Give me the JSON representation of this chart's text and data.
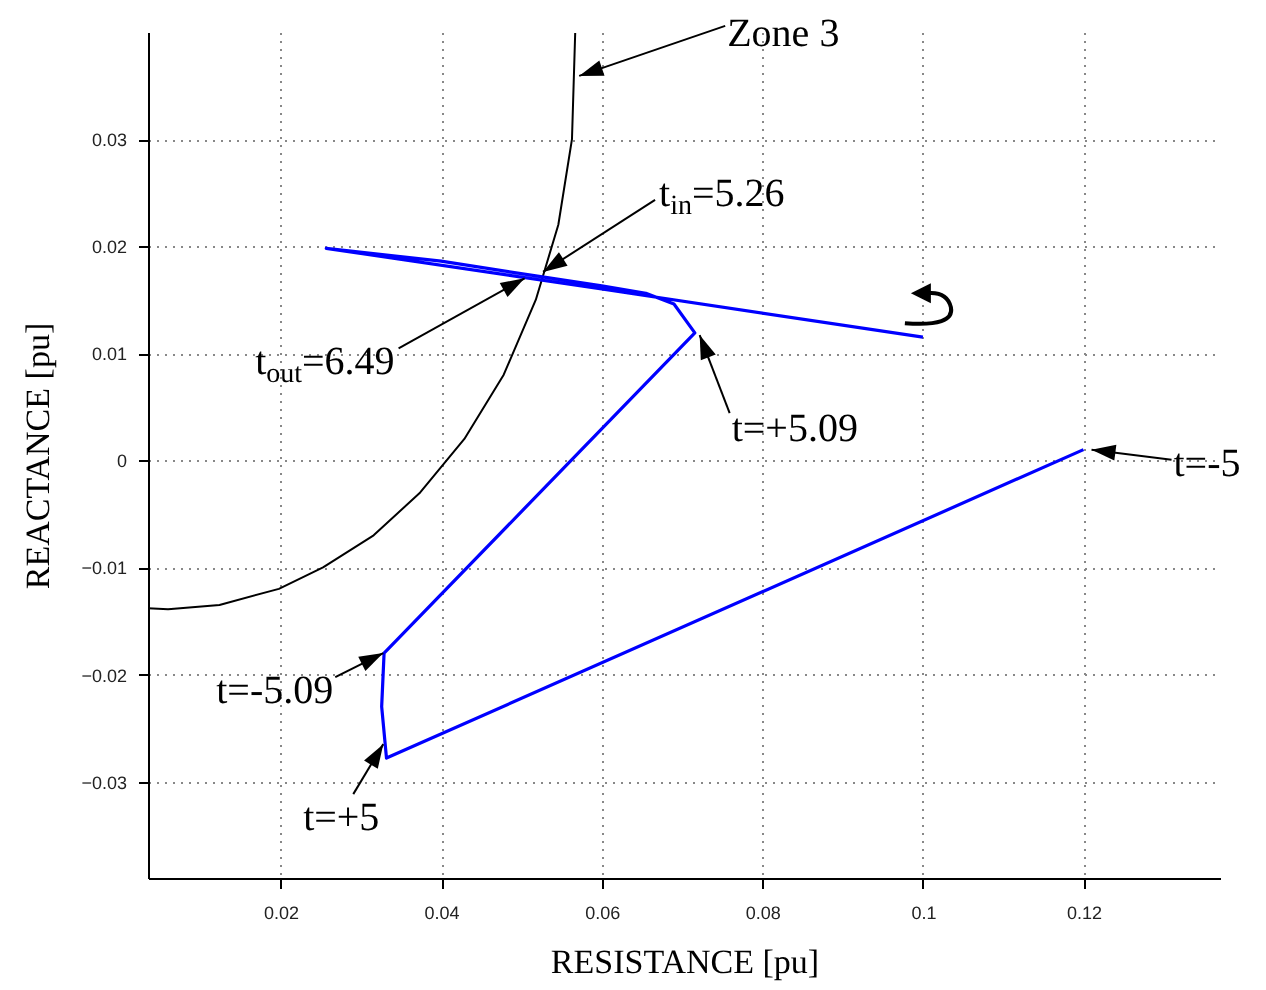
{
  "chart_data": {
    "type": "line",
    "xlabel": "RESISTANCE [pu]",
    "ylabel": "REACTANCE [pu]",
    "xlim": [
      0.0035,
      0.137
    ],
    "ylim": [
      -0.039,
      0.04
    ],
    "xticks": [
      0.02,
      0.04,
      0.06,
      0.08,
      0.1,
      0.12
    ],
    "yticks": [
      -0.03,
      -0.02,
      -0.01,
      0,
      0.01,
      0.02,
      0.03
    ],
    "grid": true,
    "series": [
      {
        "color": "#000000",
        "x": [
          0.0035,
          0.006,
          0.0124,
          0.0198,
          0.0253,
          0.0316,
          0.0374,
          0.0429,
          0.0478,
          0.0518,
          0.0546,
          0.0563,
          0.0567
        ],
        "values": [
          -0.0138,
          -0.0139,
          -0.0135,
          -0.012,
          -0.01,
          -0.007,
          -0.003,
          0.002,
          0.008,
          0.015,
          0.022,
          0.03,
          0.0399
        ]
      },
      {
        "color": "#0000ff",
        "x": [
          0.12,
          0.0332,
          0.0326,
          0.0329,
          0.0716,
          0.069,
          0.0655,
          0.06,
          0.052,
          0.04,
          0.0257,
          0.06,
          0.1
        ],
        "values": [
          0.001,
          -0.0278,
          -0.023,
          -0.018,
          0.0119,
          0.0146,
          0.0156,
          0.0163,
          0.0172,
          0.0186,
          0.0198,
          0.016,
          0.0115
        ]
      }
    ],
    "annotations": [
      {
        "text": "Zone 3",
        "x": 0.0572,
        "y": 0.0359
      },
      {
        "text": "t$_{in}$=5.26",
        "x": 0.0527,
        "y": 0.0176
      },
      {
        "text": "t$_{out}$=6.49",
        "x": 0.0504,
        "y": 0.017
      },
      {
        "text": "t=+5.09",
        "x": 0.0722,
        "y": 0.0117
      },
      {
        "text": "t=-5",
        "x": 0.121,
        "y": 0.001
      },
      {
        "text": "t=-5.09",
        "x": 0.0328,
        "y": -0.018
      },
      {
        "text": "t=+5",
        "x": 0.0328,
        "y": -0.0265
      }
    ]
  }
}
